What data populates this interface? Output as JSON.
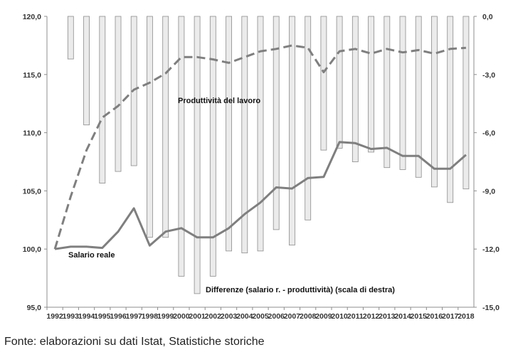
{
  "chart_data": {
    "type": "bar+line",
    "title": "",
    "categories": [
      "1992",
      "1993",
      "1994",
      "1995",
      "1996",
      "1997",
      "1998",
      "1999",
      "2000",
      "2001",
      "2002",
      "2003",
      "2004",
      "2005",
      "2006",
      "2007",
      "2008",
      "2009",
      "2010",
      "2011",
      "2012",
      "2013",
      "2014",
      "2015",
      "2016",
      "2017",
      "2018"
    ],
    "y_left": {
      "ylim": [
        95,
        120
      ],
      "ticks": [
        "95,0",
        "100,0",
        "105,0",
        "110,0",
        "115,0",
        "120,0"
      ]
    },
    "y_right": {
      "ylim": [
        -15,
        0
      ],
      "ticks": [
        "-15,0",
        "-12,0",
        "-9,0",
        "-6,0",
        "-3,0",
        "0,0"
      ]
    },
    "series": [
      {
        "name": "Differenze (salario r. - produttività) (scala di destra)",
        "type": "bar",
        "axis": "right",
        "values": [
          0,
          -2.2,
          -5.6,
          -8.6,
          -8.0,
          -7.7,
          -11.4,
          -11.4,
          -13.4,
          -14.3,
          -13.4,
          -12.1,
          -12.2,
          -12.1,
          -11.0,
          -11.8,
          -10.5,
          -6.9,
          -6.8,
          -7.5,
          -7.0,
          -7.8,
          -7.9,
          -8.3,
          -8.8,
          -9.6,
          -8.9
        ]
      },
      {
        "name": "Produttività del lavoro",
        "type": "line",
        "style": "dashed",
        "axis": "left",
        "values": [
          100.0,
          104.5,
          108.5,
          111.3,
          112.3,
          113.7,
          114.3,
          115.1,
          116.5,
          116.5,
          116.3,
          116.0,
          116.5,
          117.0,
          117.2,
          117.5,
          117.3,
          115.2,
          117.0,
          117.2,
          116.8,
          117.2,
          116.9,
          117.1,
          116.8,
          117.2,
          117.3
        ]
      },
      {
        "name": "Salario reale",
        "type": "line",
        "style": "solid",
        "axis": "left",
        "values": [
          100.0,
          100.2,
          100.2,
          100.1,
          101.5,
          103.5,
          100.3,
          101.5,
          101.8,
          101.0,
          101.0,
          101.8,
          103.0,
          104.0,
          105.3,
          105.2,
          106.1,
          106.2,
          109.2,
          109.1,
          108.6,
          108.7,
          108.0,
          108.0,
          106.9,
          106.9,
          108.1
        ]
      }
    ],
    "grid": false,
    "legend": "none (inline labels)"
  },
  "annotations": {
    "produttivita": "Produttività del lavoro",
    "salario": "Salario reale",
    "differenze": "Differenze (salario r. - produttività) (scala di destra)"
  },
  "source": "Fonte: elaborazioni su dati Istat, Statistiche storiche",
  "colors": {
    "bar_fill": "#ebebeb",
    "bar_stroke": "#8c8c8c",
    "line": "#7f7f7f",
    "axis": "#8c8c8c",
    "text": "#333333"
  }
}
